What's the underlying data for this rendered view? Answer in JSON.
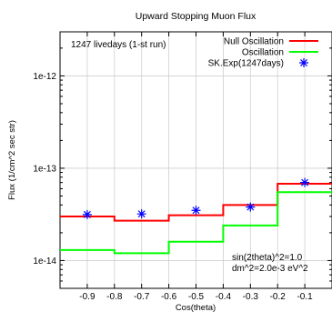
{
  "chart_data": {
    "type": "line",
    "title": "Upward Stopping Muon Flux",
    "xlabel": "Cos(theta)",
    "ylabel": "Flux (1/cm^2 sec str)",
    "xlim": [
      -1.0,
      0.0
    ],
    "ylim": [
      5e-15,
      3e-12
    ],
    "y_scale": "log",
    "grid": true,
    "x_ticks": [
      {
        "value": -0.9,
        "label": "-0.9"
      },
      {
        "value": -0.8,
        "label": "-0.8"
      },
      {
        "value": -0.7,
        "label": "-0.7"
      },
      {
        "value": -0.6,
        "label": "-0.6"
      },
      {
        "value": -0.5,
        "label": "-0.5"
      },
      {
        "value": -0.4,
        "label": "-0.4"
      },
      {
        "value": -0.3,
        "label": "-0.3"
      },
      {
        "value": -0.2,
        "label": "-0.2"
      },
      {
        "value": -0.1,
        "label": "-0.1"
      }
    ],
    "y_ticks": [
      {
        "value": 1e-14,
        "label": "1e-14"
      },
      {
        "value": 1e-13,
        "label": "1e-13"
      },
      {
        "value": 1e-12,
        "label": "1e-12"
      }
    ],
    "bin_edges": [
      -1.0,
      -0.8,
      -0.6,
      -0.4,
      -0.2,
      0.0
    ],
    "series": [
      {
        "name": "Null Oscillation",
        "kind": "step",
        "color": "#ff0000",
        "values": [
          3e-14,
          2.7e-14,
          3.1e-14,
          4e-14,
          6.8e-14
        ]
      },
      {
        "name": "Oscillation",
        "kind": "step",
        "color": "#00ff00",
        "values": [
          1.3e-14,
          1.2e-14,
          1.6e-14,
          2.4e-14,
          5.5e-14
        ]
      },
      {
        "name": "SK.Exp(1247days)",
        "kind": "points",
        "marker": "star",
        "color": "#0000ff",
        "x": [
          -0.9,
          -0.7,
          -0.5,
          -0.3,
          -0.1
        ],
        "values": [
          3.15e-14,
          3.2e-14,
          3.5e-14,
          3.8e-14,
          7e-14
        ]
      }
    ],
    "legend_position": "top-right",
    "annotations": [
      {
        "id": "livedays",
        "text": "1247 livedays (1-st run)"
      },
      {
        "id": "sin2theta",
        "text": "sin(2theta)^2=1.0"
      },
      {
        "id": "dm2",
        "text": "dm^2=2.0e-3 eV^2"
      }
    ]
  }
}
